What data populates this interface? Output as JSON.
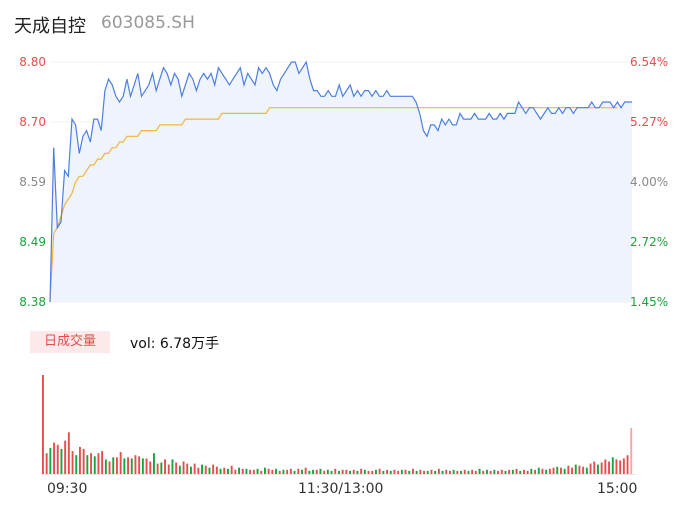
{
  "header": {
    "name": "天成自控",
    "code": "603085.SH"
  },
  "price_axis": [
    "8.80",
    "8.70",
    "8.59",
    "8.49",
    "8.38"
  ],
  "pct_axis": [
    "6.54%",
    "5.27%",
    "4.00%",
    "2.72%",
    "1.45%"
  ],
  "volume": {
    "label": "日成交量",
    "text": "vol: 6.78万手"
  },
  "time_axis": [
    "09:30",
    "11:30/13:00",
    "15:00"
  ],
  "colors": {
    "up": "#e84d4d",
    "down": "#19a33b",
    "price_line": "#4d7fe0",
    "avg_line": "#f4b43f"
  },
  "chart_data": {
    "type": "line",
    "ylim": [
      8.38,
      8.8
    ],
    "series": [
      {
        "values": [
          8.38,
          8.65,
          8.51,
          8.52,
          8.61,
          8.6,
          8.7,
          8.69,
          8.64,
          8.67,
          8.68,
          8.66,
          8.7,
          8.7,
          8.68,
          8.75,
          8.77,
          8.76,
          8.74,
          8.73,
          8.74,
          8.77,
          8.74,
          8.76,
          8.78,
          8.74,
          8.75,
          8.76,
          8.78,
          8.75,
          8.77,
          8.79,
          8.78,
          8.76,
          8.78,
          8.77,
          8.74,
          8.76,
          8.78,
          8.77,
          8.75,
          8.77,
          8.78,
          8.77,
          8.78,
          8.76,
          8.79,
          8.78,
          8.77,
          8.76,
          8.77,
          8.78,
          8.79,
          8.76,
          8.78,
          8.77,
          8.76,
          8.79,
          8.78,
          8.79,
          8.78,
          8.76,
          8.75,
          8.77,
          8.78,
          8.79,
          8.8,
          8.8,
          8.78,
          8.79,
          8.8,
          8.77,
          8.75,
          8.75,
          8.74,
          8.74,
          8.75,
          8.74,
          8.74,
          8.76,
          8.74,
          8.75,
          8.76,
          8.74,
          8.75,
          8.74,
          8.75,
          8.75,
          8.74,
          8.75,
          8.74,
          8.74,
          8.75,
          8.74,
          8.74,
          8.74,
          8.74,
          8.74,
          8.74,
          8.74,
          8.73,
          8.71,
          8.68,
          8.67,
          8.69,
          8.69,
          8.68,
          8.7,
          8.69,
          8.7,
          8.69,
          8.69,
          8.71,
          8.7,
          8.7,
          8.7,
          8.71,
          8.7,
          8.7,
          8.7,
          8.71,
          8.7,
          8.7,
          8.71,
          8.7,
          8.71,
          8.71,
          8.71,
          8.73,
          8.72,
          8.71,
          8.72,
          8.72,
          8.71,
          8.7,
          8.71,
          8.72,
          8.71,
          8.71,
          8.72,
          8.71,
          8.72,
          8.72,
          8.71,
          8.72,
          8.72,
          8.72,
          8.72,
          8.73,
          8.72,
          8.72,
          8.73,
          8.73,
          8.73,
          8.72,
          8.73,
          8.72,
          8.73,
          8.73,
          8.73
        ]
      },
      {
        "values": [
          8.38,
          8.5,
          8.51,
          8.53,
          8.55,
          8.56,
          8.57,
          8.59,
          8.6,
          8.6,
          8.61,
          8.62,
          8.62,
          8.63,
          8.63,
          8.64,
          8.64,
          8.65,
          8.65,
          8.66,
          8.66,
          8.67,
          8.67,
          8.67,
          8.67,
          8.68,
          8.68,
          8.68,
          8.68,
          8.68,
          8.69,
          8.69,
          8.69,
          8.69,
          8.69,
          8.69,
          8.69,
          8.7,
          8.7,
          8.7,
          8.7,
          8.7,
          8.7,
          8.7,
          8.7,
          8.7,
          8.7,
          8.71,
          8.71,
          8.71,
          8.71,
          8.71,
          8.71,
          8.71,
          8.71,
          8.71,
          8.71,
          8.71,
          8.71,
          8.71,
          8.72,
          8.72,
          8.72,
          8.72,
          8.72,
          8.72,
          8.72,
          8.72,
          8.72,
          8.72,
          8.72,
          8.72,
          8.72,
          8.72,
          8.72,
          8.72,
          8.72,
          8.72,
          8.72,
          8.72,
          8.72,
          8.72,
          8.72,
          8.72,
          8.72,
          8.72,
          8.72,
          8.72,
          8.72,
          8.72,
          8.72,
          8.72,
          8.72,
          8.72,
          8.72,
          8.72,
          8.72,
          8.72,
          8.72,
          8.72,
          8.72,
          8.72,
          8.72,
          8.72,
          8.72,
          8.72,
          8.72,
          8.72,
          8.72,
          8.72,
          8.72,
          8.72,
          8.72,
          8.72,
          8.72,
          8.72,
          8.72,
          8.72,
          8.72,
          8.72,
          8.72,
          8.72,
          8.72,
          8.72,
          8.72,
          8.72,
          8.72,
          8.72,
          8.72,
          8.72,
          8.72,
          8.72,
          8.72,
          8.72,
          8.72,
          8.72,
          8.72,
          8.72,
          8.72,
          8.72,
          8.72,
          8.72,
          8.72,
          8.72,
          8.72,
          8.72,
          8.72,
          8.72,
          8.72,
          8.72,
          8.72,
          8.72,
          8.72,
          8.72,
          8.72,
          8.72
        ]
      }
    ],
    "volume_values": [
      95,
      20,
      25,
      30,
      28,
      24,
      32,
      40,
      22,
      18,
      26,
      24,
      18,
      20,
      17,
      20,
      22,
      14,
      12,
      16,
      16,
      21,
      15,
      16,
      15,
      18,
      17,
      15,
      15,
      12,
      20,
      10,
      11,
      14,
      9,
      14,
      11,
      8,
      12,
      10,
      7,
      10,
      6,
      9,
      8,
      6,
      9,
      7,
      5,
      6,
      5,
      8,
      4,
      6,
      5,
      5,
      4,
      4,
      5,
      3,
      6,
      5,
      4,
      5,
      3,
      4,
      4,
      5,
      3,
      5,
      4,
      6,
      3,
      4,
      4,
      5,
      3,
      4,
      3,
      5,
      3,
      4,
      4,
      3,
      4,
      3,
      5,
      4,
      3,
      3,
      4,
      5,
      3,
      4,
      3,
      4,
      3,
      4,
      4,
      3,
      5,
      3,
      4,
      3,
      3,
      4,
      3,
      5,
      3,
      4,
      3,
      4,
      3,
      3,
      4,
      3,
      4,
      3,
      5,
      3,
      4,
      3,
      4,
      3,
      4,
      3,
      4,
      4,
      5,
      3,
      4,
      3,
      5,
      4,
      6,
      5,
      4,
      5,
      6,
      7,
      6,
      5,
      8,
      6,
      9,
      8,
      7,
      6,
      10,
      12,
      9,
      11,
      14,
      12,
      16,
      14,
      13,
      15,
      18,
      44
    ],
    "volume_up": [
      true,
      true,
      false,
      true,
      true,
      false,
      true,
      true,
      true,
      false,
      true,
      true,
      false,
      true,
      false,
      true,
      true,
      false,
      true,
      false,
      true,
      true,
      false,
      true,
      false,
      true,
      true,
      false,
      true,
      true,
      false,
      true,
      false,
      true,
      true,
      false,
      true,
      false,
      true,
      true,
      false,
      true,
      true,
      false,
      true,
      false,
      true,
      true,
      false,
      true,
      false,
      true,
      true,
      false,
      true,
      false,
      true,
      true,
      false,
      true,
      false,
      true,
      true,
      false,
      true,
      false,
      true,
      true,
      false,
      true,
      false,
      true,
      false,
      false,
      true,
      false,
      true,
      false,
      false,
      true,
      false,
      true,
      true,
      false,
      true,
      false,
      true,
      false,
      true,
      true,
      false,
      true,
      false,
      true,
      false,
      true,
      true,
      false,
      true,
      false,
      true,
      false,
      true,
      true,
      false,
      true,
      false,
      true,
      false,
      true,
      true,
      false,
      true,
      false,
      true,
      false,
      true,
      true,
      false,
      true,
      false,
      true,
      false,
      true,
      true,
      false,
      true,
      false,
      true,
      false,
      true,
      true,
      false,
      true,
      false,
      true,
      false,
      true,
      true,
      false,
      true,
      false,
      true,
      true,
      false,
      true,
      true,
      false,
      true,
      true,
      false,
      true,
      true,
      true,
      false,
      true,
      true,
      true,
      true,
      true
    ]
  }
}
